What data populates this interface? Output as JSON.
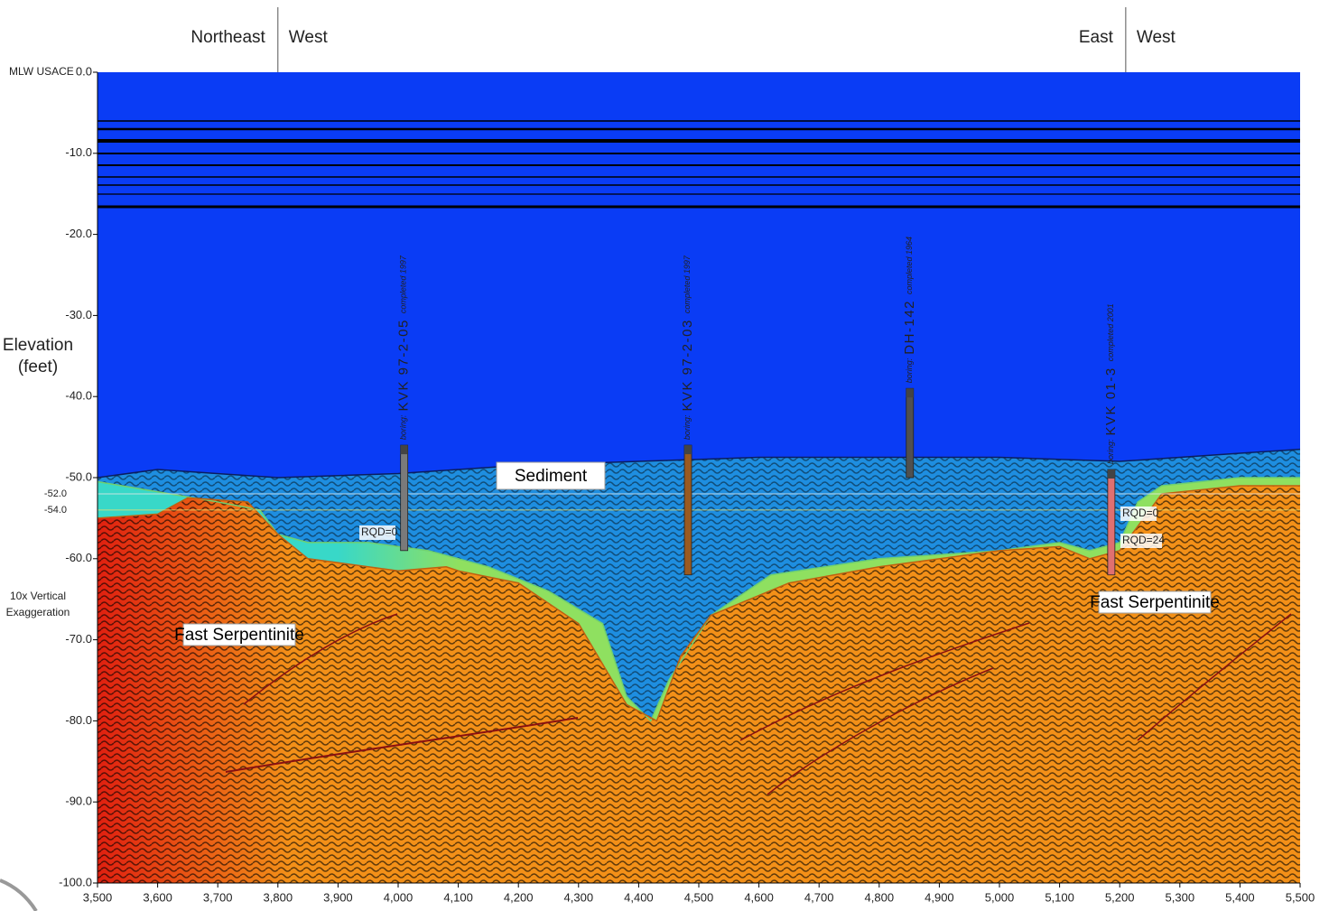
{
  "chart_data": {
    "type": "seismic-section",
    "y_axis_datum": "MLW USACE",
    "ylabel": [
      "Elevation",
      "(feet)"
    ],
    "exaggeration": [
      "10x Vertical",
      "Exaggeration"
    ],
    "xlim": [
      3500,
      5500
    ],
    "ylim": [
      -100,
      0
    ],
    "xticks": [
      {
        "value": 3500,
        "label": "3,500"
      },
      {
        "value": 3600,
        "label": "3,600"
      },
      {
        "value": 3700,
        "label": "3,700"
      },
      {
        "value": 3800,
        "label": "3,800"
      },
      {
        "value": 3900,
        "label": "3,900"
      },
      {
        "value": 4000,
        "label": "4,000"
      },
      {
        "value": 4100,
        "label": "4,100"
      },
      {
        "value": 4200,
        "label": "4,200"
      },
      {
        "value": 4300,
        "label": "4,300"
      },
      {
        "value": 4400,
        "label": "4,400"
      },
      {
        "value": 4500,
        "label": "4,500"
      },
      {
        "value": 4600,
        "label": "4,600"
      },
      {
        "value": 4700,
        "label": "4,700"
      },
      {
        "value": 4800,
        "label": "4,800"
      },
      {
        "value": 4900,
        "label": "4,900"
      },
      {
        "value": 5000,
        "label": "5,000"
      },
      {
        "value": 5100,
        "label": "5,100"
      },
      {
        "value": 5200,
        "label": "5,200"
      },
      {
        "value": 5300,
        "label": "5,300"
      },
      {
        "value": 5400,
        "label": "5,400"
      },
      {
        "value": 5500,
        "label": "5,500"
      }
    ],
    "yticks": [
      {
        "value": 0,
        "label": "0.0"
      },
      {
        "value": -10,
        "label": "-10.0"
      },
      {
        "value": -20,
        "label": "-20.0"
      },
      {
        "value": -30,
        "label": "-30.0"
      },
      {
        "value": -40,
        "label": "-40.0"
      },
      {
        "value": -50,
        "label": "-50.0"
      },
      {
        "value": -60,
        "label": "-60.0"
      },
      {
        "value": -70,
        "label": "-70.0"
      },
      {
        "value": -80,
        "label": "-80.0"
      },
      {
        "value": -90,
        "label": "-90.0"
      },
      {
        "value": -100,
        "label": "-100.0"
      }
    ],
    "reference_lines": [
      {
        "value": -52,
        "label": "-52.0",
        "color": "#e8e8e8"
      },
      {
        "value": -54,
        "label": "-54.0",
        "color": "#e8e070"
      }
    ],
    "sections": [
      {
        "x": 3800,
        "left": "Northeast",
        "right": "West"
      },
      {
        "x": 5210,
        "left": "East",
        "right": "West"
      }
    ],
    "surfaces": {
      "seafloor": {
        "color": "#0a1e60",
        "x": [
          3500,
          3600,
          3800,
          4000,
          4200,
          4400,
          4600,
          4800,
          5000,
          5200,
          5400,
          5500
        ],
        "values": [
          -50,
          -49,
          -50,
          -49.5,
          -48.5,
          -48,
          -47.5,
          -47.5,
          -47.5,
          -48,
          -47,
          -46.5
        ]
      },
      "sediment_base": {
        "color": "#6fd070",
        "x": [
          3500,
          3700,
          3770,
          3800,
          3850,
          3950,
          4050,
          4150,
          4250,
          4340,
          4380,
          4420,
          4450,
          4520,
          4620,
          4800,
          5000,
          5100,
          5150,
          5200,
          5230,
          5270,
          5400,
          5500
        ],
        "values": [
          -50.5,
          -53,
          -54,
          -57,
          -58,
          -58,
          -59,
          -61,
          -64,
          -68,
          -77,
          -80,
          -75,
          -67,
          -62,
          -60,
          -59,
          -58,
          -59,
          -58,
          -53,
          -51,
          -50,
          -50
        ]
      },
      "rock_top": {
        "color": "#c06010",
        "x": [
          3500,
          3600,
          3650,
          3750,
          3800,
          3850,
          4000,
          4080,
          4100,
          4200,
          4300,
          4380,
          4430,
          4470,
          4520,
          4650,
          4800,
          5000,
          5100,
          5150,
          5200,
          5270,
          5400,
          5500
        ],
        "values": [
          -55,
          -54.5,
          -52.5,
          -53,
          -57,
          -60,
          -61.5,
          -61,
          -61.5,
          -63,
          -68,
          -78,
          -80,
          -72,
          -67,
          -63,
          -61,
          -59,
          -58.5,
          -60,
          -59,
          -52,
          -51,
          -51
        ]
      }
    },
    "colors": {
      "water": "#0a3cf5",
      "sediment": "#1e8ee0",
      "rock": "#f39018",
      "rock_edge": "#e02010",
      "slow_layer": "#8fe060",
      "slow_layer_edge": "#38d8c8"
    },
    "boring_prefix": "boring:",
    "borings": [
      {
        "name": "KVK 97-2-05",
        "note": "completed 1997",
        "x": 4010,
        "top": -46,
        "bottom": -59,
        "color": "#7a7a7a"
      },
      {
        "name": "KVK 97-2-03",
        "note": "completed 1997",
        "x": 4482,
        "top": -46,
        "bottom": -62,
        "color": "#9a5a20"
      },
      {
        "name": "DH-142",
        "note": "completed 1964",
        "x": 4851,
        "top": -39,
        "bottom": -50,
        "color": "#505050"
      },
      {
        "name": "KVK 01-3",
        "note": "completed 2001",
        "x": 5186,
        "top": -49,
        "bottom": -62,
        "color": "#e07070"
      }
    ],
    "rqd_labels": [
      "RQD=0",
      "RQD=0",
      "RQD=24"
    ],
    "annotations": [
      "Sediment",
      "Fast Serpentinite",
      "Fast Serpentinite"
    ]
  }
}
